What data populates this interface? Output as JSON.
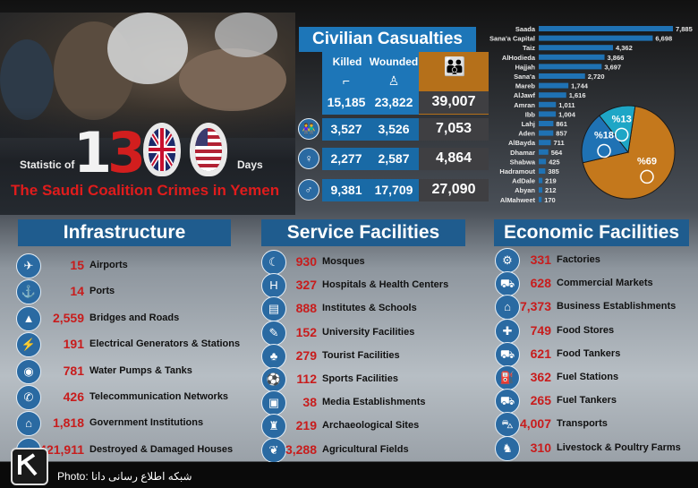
{
  "title": {
    "prefix": "Statistic of",
    "number_1": "1",
    "number_3": "3",
    "suffix": "Days",
    "subtitle": "The Saudi Coalition Crimes in Yemen"
  },
  "credit": "Photo: شبکه اطلاع رسانی دانا",
  "colors": {
    "header_blue": "#1f5c8e",
    "accent_red": "#c81c1c",
    "table_blue": "#1d76b8",
    "table_dark": "#4a4a4a",
    "total_orange": "#b5701a",
    "pie_orange": "#c4781c",
    "pie_blue": "#1f72b4",
    "pie_teal": "#1ea6c6"
  },
  "casualties": {
    "title": "Civilian Casualties",
    "headers": {
      "killed": "Killed",
      "wounded": "Wounded"
    },
    "rows": [
      {
        "group": "total",
        "icon": "gun-icon",
        "killed": "15,185",
        "wounded": "23,822",
        "total": "39,007"
      },
      {
        "group": "children",
        "icon": "children-icon",
        "killed": "3,527",
        "wounded": "3,526",
        "total": "7,053"
      },
      {
        "group": "women",
        "icon": "woman-icon",
        "killed": "2,277",
        "wounded": "2,587",
        "total": "4,864"
      },
      {
        "group": "men",
        "icon": "man-icon",
        "killed": "9,381",
        "wounded": "17,709",
        "total": "27,090"
      }
    ]
  },
  "chart_data": [
    {
      "type": "bar",
      "categories": [
        "Saada",
        "Sana'a Capital",
        "Taiz",
        "AlHodieda",
        "Hajjah",
        "Sana'a",
        "Mareb",
        "AlJawf",
        "Amran",
        "Ibb",
        "Lahj",
        "Aden",
        "AlBayda",
        "Dhamar",
        "Shabwa",
        "Hadramout",
        "AdDale",
        "Abyan",
        "AlMahweet"
      ],
      "values": [
        7885,
        6698,
        4362,
        3866,
        3697,
        2720,
        1744,
        1616,
        1011,
        1004,
        861,
        857,
        711,
        564,
        425,
        385,
        219,
        212,
        170
      ],
      "value_labels": [
        "7,885",
        "6,698",
        "4,362",
        "3,866",
        "3,697",
        "2,720",
        "1,744",
        "1,616",
        "1,011",
        "1,004",
        "861",
        "857",
        "711",
        "564",
        "425",
        "385",
        "219",
        "212",
        "170"
      ],
      "orientation": "horizontal"
    },
    {
      "type": "pie",
      "categories": [
        "men",
        "children",
        "women"
      ],
      "values": [
        69,
        18,
        13
      ],
      "labels": [
        "%69",
        "%18",
        "%13"
      ]
    }
  ],
  "sections": [
    {
      "title": "Infrastructure",
      "items": [
        {
          "icon": "airplane-icon",
          "glyph": "✈",
          "value": "15",
          "label": "Airports"
        },
        {
          "icon": "anchor-icon",
          "glyph": "⚓",
          "value": "14",
          "label": "Ports"
        },
        {
          "icon": "road-icon",
          "glyph": "▲",
          "value": "2,559",
          "label": "Bridges and Roads"
        },
        {
          "icon": "generator-icon",
          "glyph": "⚡",
          "value": "191",
          "label": "Electrical Generators & Stations"
        },
        {
          "icon": "water-pump-icon",
          "glyph": "◉",
          "value": "781",
          "label": "Water Pumps & Tanks"
        },
        {
          "icon": "antenna-icon",
          "glyph": "✆",
          "value": "426",
          "label": "Telecommunication Networks"
        },
        {
          "icon": "government-icon",
          "glyph": "⌂",
          "value": "1,818",
          "label": "Government Institutions"
        },
        {
          "icon": "house-icon",
          "glyph": "⌂",
          "value": "421,911",
          "label": "Destroyed & Damaged Houses"
        }
      ]
    },
    {
      "title": "Service Facilities",
      "items": [
        {
          "icon": "mosque-icon",
          "glyph": "☾",
          "value": "930",
          "label": "Mosques"
        },
        {
          "icon": "hospital-icon",
          "glyph": "H",
          "value": "327",
          "label": "Hospitals & Health Centers"
        },
        {
          "icon": "book-icon",
          "glyph": "▤",
          "value": "888",
          "label": "Institutes & Schools"
        },
        {
          "icon": "graduation-cap-icon",
          "glyph": "✎",
          "value": "152",
          "label": "University Facilities"
        },
        {
          "icon": "palm-tree-icon",
          "glyph": "♣",
          "value": "279",
          "label": "Tourist Facilities"
        },
        {
          "icon": "sports-icon",
          "glyph": "⚽",
          "value": "112",
          "label": "Sports Facilities"
        },
        {
          "icon": "tv-icon",
          "glyph": "▣",
          "value": "38",
          "label": "Media Establishments"
        },
        {
          "icon": "castle-icon",
          "glyph": "♜",
          "value": "219",
          "label": "Archaeological Sites"
        },
        {
          "icon": "wheat-icon",
          "glyph": "❦",
          "value": "3,288",
          "label": "Agricultural Fields"
        }
      ]
    },
    {
      "title": "Economic Facilities",
      "items": [
        {
          "icon": "factory-icon",
          "glyph": "⚙",
          "value": "331",
          "label": "Factories"
        },
        {
          "icon": "shopping-cart-icon",
          "glyph": "⛟",
          "value": "628",
          "label": "Commercial Markets"
        },
        {
          "icon": "store-icon",
          "glyph": "⌂",
          "value": "7,373",
          "label": "Business Establishments"
        },
        {
          "icon": "food-store-icon",
          "glyph": "✚",
          "value": "749",
          "label": "Food Stores"
        },
        {
          "icon": "food-tanker-icon",
          "glyph": "⛟",
          "value": "621",
          "label": "Food Tankers"
        },
        {
          "icon": "fuel-pump-icon",
          "glyph": "⛽",
          "value": "362",
          "label": "Fuel Stations"
        },
        {
          "icon": "fuel-tanker-icon",
          "glyph": "⛟",
          "value": "265",
          "label": "Fuel Tankers"
        },
        {
          "icon": "car-icon",
          "glyph": "⛍",
          "value": "4,007",
          "label": "Transports"
        },
        {
          "icon": "chicken-icon",
          "glyph": "♞",
          "value": "310",
          "label": "Livestock & Poultry Farms"
        }
      ]
    }
  ]
}
